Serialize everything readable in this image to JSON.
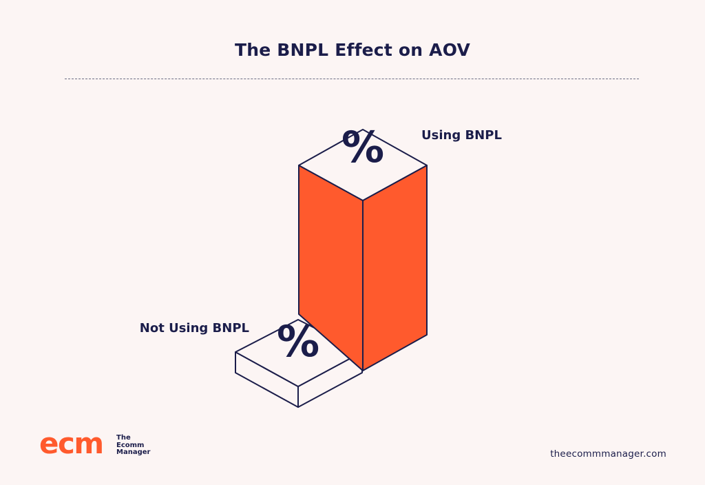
{
  "chart_data": {
    "type": "bar",
    "title": "The BNPL Effect on AOV",
    "categories": [
      "Not Using BNPL",
      "Using BNPL"
    ],
    "bar_symbols": [
      "%",
      "%"
    ],
    "colors": {
      "bar_side": "#ff5a2d",
      "bar_top": "#fcf5f4",
      "outline": "#1b1d4a"
    }
  },
  "footer": {
    "brand_mark": "ecm",
    "brand_lines": [
      "The",
      "Ecomm",
      "Manager"
    ],
    "website": "theecommmanager.com"
  }
}
